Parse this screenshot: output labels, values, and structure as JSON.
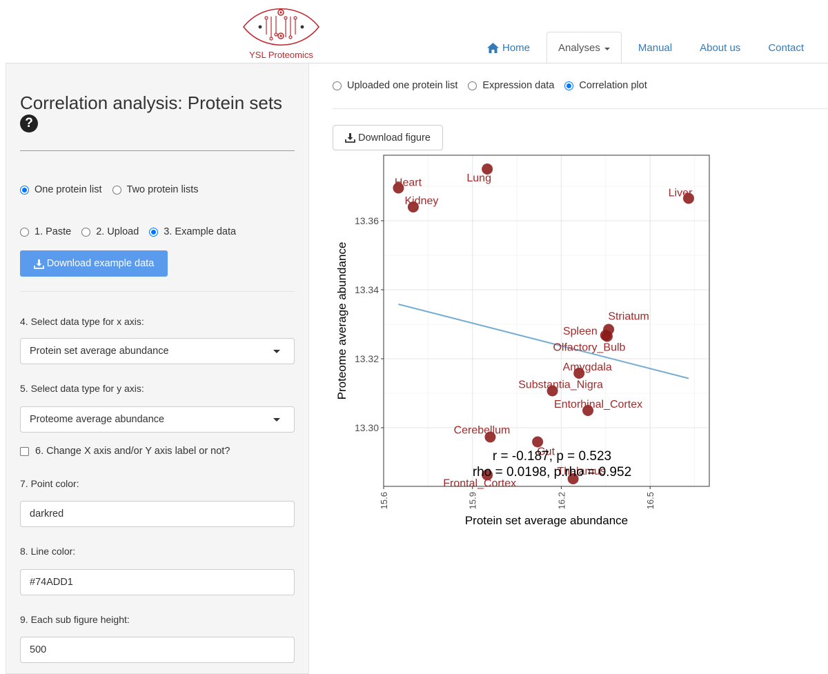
{
  "brand": {
    "name": "YSL Proteomics",
    "color": "#c0282d"
  },
  "nav": {
    "items": [
      {
        "label": "Home",
        "icon": "home-icon"
      },
      {
        "label": "Analyses",
        "active": true
      },
      {
        "label": "Manual"
      },
      {
        "label": "About us"
      },
      {
        "label": "Contact"
      }
    ]
  },
  "sidebar": {
    "title": "Correlation analysis: Protein sets",
    "help_icon": "?",
    "list_mode": {
      "options": [
        "One protein list",
        "Two protein lists"
      ],
      "selected": 0
    },
    "input_mode": {
      "options": [
        "1. Paste",
        "2. Upload",
        "3. Example data"
      ],
      "selected": 2
    },
    "download_example_label": "Download example data",
    "x_axis": {
      "label": "4. Select data type for x axis:",
      "value": "Protein set average abundance"
    },
    "y_axis": {
      "label": "5. Select data type for y axis:",
      "value": "Proteome average abundance"
    },
    "change_label": {
      "label": "6. Change X axis and/or Y axis label or not?",
      "checked": false
    },
    "point_color": {
      "label": "7. Point color:",
      "value": "darkred"
    },
    "line_color": {
      "label": "8. Line color:",
      "value": "#74ADD1"
    },
    "sub_height": {
      "label": "9. Each sub figure height:",
      "value": "500"
    }
  },
  "main": {
    "view_mode": {
      "options": [
        "Uploaded one protein list",
        "Expression data",
        "Correlation plot"
      ],
      "selected": 2
    },
    "download_figure_label": "Download figure"
  },
  "chart_data": {
    "type": "scatter",
    "xlabel": "Protein set average abundance",
    "ylabel": "Proteome average abundance",
    "xlim": [
      15.6,
      16.7
    ],
    "ylim": [
      13.283,
      13.379
    ],
    "x_ticks": [
      15.6,
      15.9,
      16.2,
      16.5
    ],
    "x_tick_labels": [
      "15.6",
      "15.9",
      "16.2",
      "16.5"
    ],
    "y_ticks": [
      13.3,
      13.32,
      13.34,
      13.36
    ],
    "y_tick_labels": [
      "13.30",
      "13.32",
      "13.34",
      "13.36"
    ],
    "grid": true,
    "point_color": "#8b1a1a",
    "line_color": "#74ADD1",
    "points": [
      {
        "label": "Heart",
        "x": 15.65,
        "y": 13.3695
      },
      {
        "label": "Kidney",
        "x": 15.7,
        "y": 13.364
      },
      {
        "label": "Lung",
        "x": 15.95,
        "y": 13.375
      },
      {
        "label": "Liver",
        "x": 16.63,
        "y": 13.3665
      },
      {
        "label": "Striatum",
        "x": 16.36,
        "y": 13.3285
      },
      {
        "label": "Spleen",
        "x": 16.35,
        "y": 13.3268
      },
      {
        "label": "Olfactory_Bulb",
        "x": 16.355,
        "y": 13.3265
      },
      {
        "label": "Amygdala",
        "x": 16.26,
        "y": 13.3158
      },
      {
        "label": "Substantia_Nigra",
        "x": 16.17,
        "y": 13.3107
      },
      {
        "label": "Entorhinal_Cortex",
        "x": 16.29,
        "y": 13.305
      },
      {
        "label": "Cerebellum",
        "x": 15.96,
        "y": 13.2973
      },
      {
        "label": "Gut",
        "x": 16.12,
        "y": 13.2959
      },
      {
        "label": "Thalamus",
        "x": 16.24,
        "y": 13.2852
      },
      {
        "label": "Frontal_Cortex",
        "x": 15.95,
        "y": 13.2863
      }
    ],
    "fit_line": {
      "x": [
        15.65,
        16.63
      ],
      "y": [
        13.3358,
        13.3143
      ]
    },
    "annotations": [
      {
        "text": "r = -0.187,  p = 0.523"
      },
      {
        "text": "rho = 0.0198,  p.rho = 0.952"
      }
    ]
  }
}
